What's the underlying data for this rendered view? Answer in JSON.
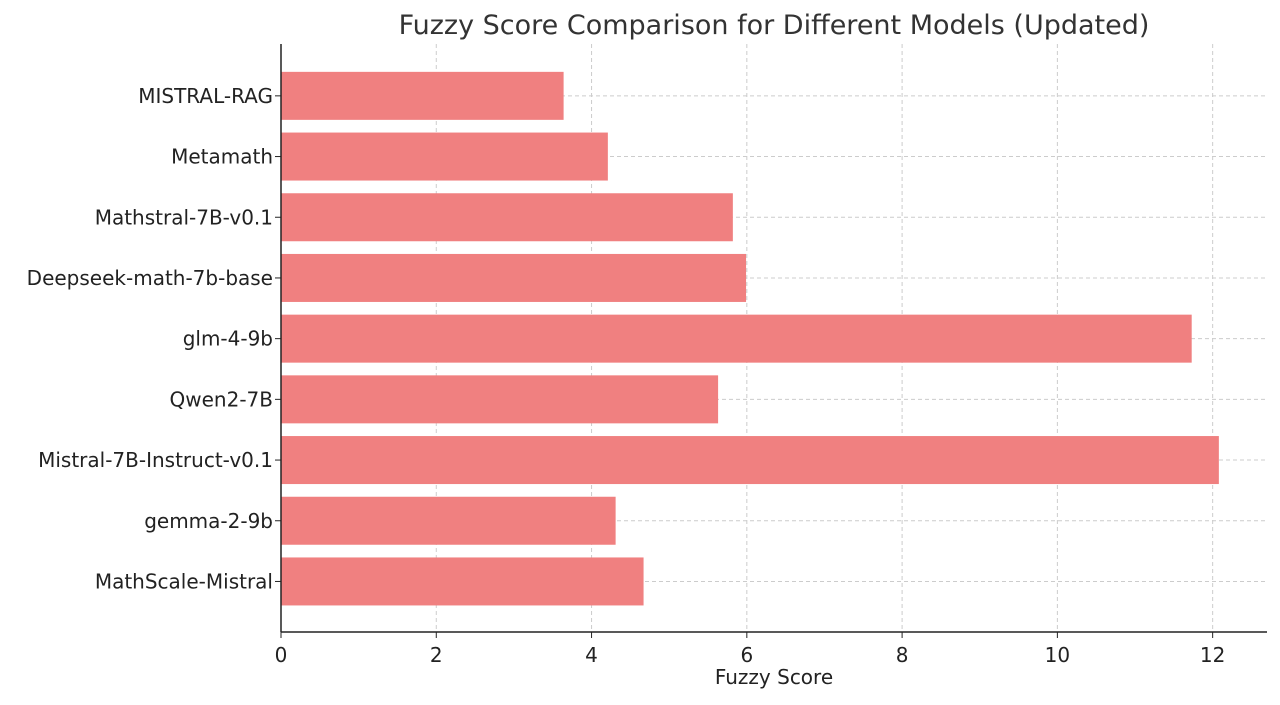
{
  "chart_data": {
    "type": "bar",
    "orientation": "horizontal",
    "title": "Fuzzy Score Comparison for Different Models (Updated)",
    "xlabel": "Fuzzy Score",
    "ylabel": "",
    "categories": [
      "MISTRAL-RAG",
      "Metamath",
      "Mathstral-7B-v0.1",
      "Deepseek-math-7b-base",
      "glm-4-9b",
      "Qwen2-7B",
      "Mistral-7B-Instruct-v0.1",
      "gemma-2-9b",
      "MathScale-Mistral"
    ],
    "values": [
      3.64,
      4.21,
      5.82,
      5.99,
      11.73,
      5.63,
      12.08,
      4.31,
      4.67
    ],
    "xlim": [
      0,
      12.7
    ],
    "xticks": [
      0,
      2,
      4,
      6,
      8,
      10,
      12
    ],
    "grid": true,
    "bar_color": "#f08080",
    "grid_color": "#cccccc",
    "axis_color": "#222222"
  }
}
